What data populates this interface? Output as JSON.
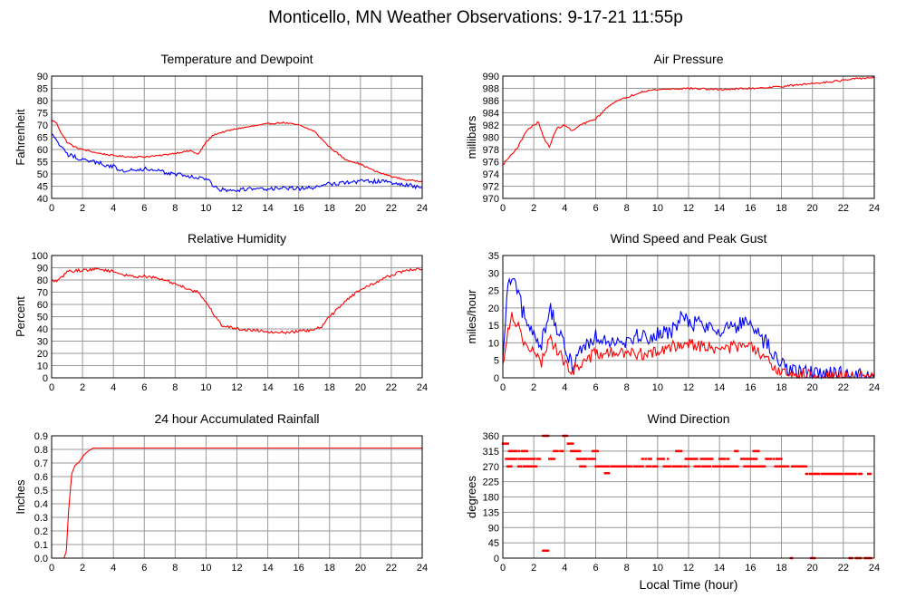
{
  "figure": {
    "title": "Monticello, MN Weather Observations: 9-17-21 11:55p",
    "xlabel": "Local Time (hour)"
  },
  "colors": {
    "red": "#ff0000",
    "blue": "#0000ff",
    "grid": "#999999",
    "frame": "#000000"
  },
  "chart_data": [
    {
      "id": "temperature",
      "type": "line",
      "title": "Temperature and Dewpoint",
      "ylabel": "Fahrenheit",
      "xlim": [
        0,
        24
      ],
      "ylim": [
        40,
        90
      ],
      "xticks": [
        0,
        2,
        4,
        6,
        8,
        10,
        12,
        14,
        16,
        18,
        20,
        22,
        24
      ],
      "yticks": [
        40,
        45,
        50,
        55,
        60,
        65,
        70,
        75,
        80,
        85,
        90
      ],
      "grid": true,
      "series": [
        {
          "color": "red",
          "noise": 0.3,
          "x": [
            0,
            0.3,
            0.6,
            1,
            1.5,
            2,
            3,
            4,
            5,
            6,
            7,
            8,
            9,
            9.5,
            10,
            10.5,
            11,
            12,
            13,
            14,
            15,
            16,
            17,
            18,
            19,
            20,
            21,
            22,
            23,
            24
          ],
          "y": [
            72,
            71,
            67,
            63,
            61,
            60,
            58.5,
            57.5,
            57,
            57,
            57.5,
            58.5,
            59.5,
            58,
            63,
            66,
            67,
            68.5,
            69.5,
            70.5,
            71,
            70,
            67.5,
            61,
            56,
            54,
            51,
            49,
            47.5,
            47
          ]
        },
        {
          "color": "blue",
          "noise": 0.9,
          "x": [
            0,
            0.3,
            0.6,
            1,
            1.5,
            2,
            3,
            4,
            4.5,
            5,
            6,
            7,
            8,
            9,
            10,
            10.5,
            11,
            12,
            13,
            14,
            15,
            16,
            17,
            18,
            19,
            20,
            21,
            22,
            23,
            24
          ],
          "y": [
            66,
            64,
            61,
            58,
            57,
            56,
            54.5,
            53,
            51,
            52,
            52,
            51,
            50,
            49,
            48,
            45,
            43.5,
            43.5,
            44,
            44,
            44,
            44,
            44.5,
            46,
            46.5,
            47,
            47,
            46.5,
            45.5,
            44.5
          ]
        }
      ]
    },
    {
      "id": "pressure",
      "type": "line",
      "title": "Air Pressure",
      "ylabel": "millibars",
      "xlim": [
        0,
        24
      ],
      "ylim": [
        970,
        990
      ],
      "xticks": [
        0,
        2,
        4,
        6,
        8,
        10,
        12,
        14,
        16,
        18,
        20,
        22,
        24
      ],
      "yticks": [
        970,
        972,
        974,
        976,
        978,
        980,
        982,
        984,
        986,
        988,
        990
      ],
      "grid": true,
      "series": [
        {
          "color": "red",
          "noise": 0.15,
          "x": [
            0,
            0.5,
            1,
            1.5,
            2,
            2.3,
            2.7,
            3,
            3.5,
            4,
            4.5,
            5,
            6,
            7,
            8,
            9,
            10,
            12,
            14,
            16,
            18,
            20,
            22,
            23,
            24
          ],
          "y": [
            975.5,
            977,
            978.5,
            981,
            982,
            982.5,
            979.5,
            978.5,
            981.5,
            982,
            981,
            982,
            983,
            985.5,
            986.5,
            987.5,
            987.8,
            988,
            987.8,
            988,
            988.3,
            988.8,
            989.3,
            989.6,
            989.8
          ]
        }
      ]
    },
    {
      "id": "humidity",
      "type": "line",
      "title": "Relative Humidity",
      "ylabel": "Percent",
      "xlim": [
        0,
        24
      ],
      "ylim": [
        0,
        100
      ],
      "xticks": [
        0,
        2,
        4,
        6,
        8,
        10,
        12,
        14,
        16,
        18,
        20,
        22,
        24
      ],
      "yticks": [
        0,
        10,
        20,
        30,
        40,
        50,
        60,
        70,
        80,
        90,
        100
      ],
      "grid": true,
      "series": [
        {
          "color": "red",
          "noise": 1.2,
          "x": [
            0,
            0.5,
            1,
            2,
            3,
            4,
            5,
            6,
            7,
            8,
            9,
            9.5,
            10,
            10.5,
            11,
            12,
            13,
            14,
            15,
            16,
            17,
            17.5,
            18,
            18.5,
            19,
            20,
            21,
            22,
            23,
            24
          ],
          "y": [
            79,
            80,
            87,
            88,
            89,
            87,
            83,
            83,
            81,
            77,
            72,
            70,
            62,
            52,
            43,
            40,
            39,
            38,
            37,
            38,
            39,
            42,
            50,
            56,
            63,
            72,
            78,
            84,
            88,
            89
          ]
        }
      ]
    },
    {
      "id": "wind",
      "type": "line",
      "title": "Wind Speed and Peak Gust",
      "ylabel": "miles/hour",
      "xlim": [
        0,
        24
      ],
      "ylim": [
        0,
        35
      ],
      "xticks": [
        0,
        2,
        4,
        6,
        8,
        10,
        12,
        14,
        16,
        18,
        20,
        22,
        24
      ],
      "yticks": [
        0,
        5,
        10,
        15,
        20,
        25,
        30,
        35
      ],
      "grid": true,
      "series": [
        {
          "color": "blue",
          "noise": 2.5,
          "x": [
            0,
            0.3,
            0.6,
            1,
            1.5,
            2,
            2.5,
            3,
            3.5,
            4,
            4.5,
            5,
            6,
            7,
            8,
            9,
            10,
            11,
            11.5,
            12,
            13,
            14,
            15,
            16,
            16.5,
            17,
            17.5,
            18,
            19,
            20,
            21,
            22,
            23,
            23.5,
            24
          ],
          "y": [
            4,
            25,
            29,
            23,
            16,
            12,
            10,
            20,
            14,
            8,
            4,
            8,
            12,
            11,
            11,
            12,
            12,
            14,
            17,
            16,
            15,
            14,
            15,
            15,
            12,
            10,
            6,
            4,
            2,
            1,
            1,
            1,
            0.5,
            0,
            0.5
          ]
        },
        {
          "color": "red",
          "noise": 1.8,
          "x": [
            0,
            0.3,
            0.6,
            1,
            1.5,
            2,
            2.5,
            3,
            3.5,
            4,
            4.5,
            5,
            6,
            7,
            8,
            9,
            10,
            11,
            11.5,
            12,
            13,
            14,
            15,
            16,
            16.5,
            17,
            17.5,
            18,
            19,
            20,
            21,
            22,
            23,
            24
          ],
          "y": [
            3,
            14,
            18,
            15,
            9,
            7,
            4,
            12,
            8,
            4,
            2,
            4,
            7,
            7,
            7,
            7,
            7,
            9,
            10,
            10,
            9,
            8,
            9,
            9,
            7,
            5,
            3,
            2,
            1,
            0.5,
            0.5,
            0.5,
            0,
            0
          ]
        }
      ]
    },
    {
      "id": "rainfall",
      "type": "line",
      "title": "24 hour Accumulated Rainfall",
      "ylabel": "Inches",
      "xlim": [
        0,
        24
      ],
      "ylim": [
        0,
        0.9
      ],
      "xticks": [
        0,
        2,
        4,
        6,
        8,
        10,
        12,
        14,
        16,
        18,
        20,
        22,
        24
      ],
      "yticks": [
        0.0,
        0.1,
        0.2,
        0.3,
        0.4,
        0.5,
        0.6,
        0.7,
        0.8,
        0.9
      ],
      "ytick_labels": [
        "0.0",
        "0.1",
        "0.2",
        "0.3",
        "0.4",
        "0.5",
        "0.6",
        "0.7",
        "0.8",
        "0.9"
      ],
      "grid": true,
      "series": [
        {
          "color": "red",
          "noise": 0,
          "x": [
            0,
            0.8,
            0.95,
            1.1,
            1.3,
            1.5,
            1.8,
            2.1,
            2.4,
            2.7,
            3,
            24
          ],
          "y": [
            0,
            0,
            0.05,
            0.35,
            0.62,
            0.68,
            0.71,
            0.76,
            0.79,
            0.81,
            0.81,
            0.81
          ]
        }
      ]
    },
    {
      "id": "direction",
      "type": "scatter",
      "title": "Wind Direction",
      "ylabel": "degrees",
      "xlim": [
        0,
        24
      ],
      "ylim": [
        0,
        360
      ],
      "xticks": [
        0,
        2,
        4,
        6,
        8,
        10,
        12,
        14,
        16,
        18,
        20,
        22,
        24
      ],
      "yticks": [
        0,
        45,
        90,
        135,
        180,
        225,
        270,
        315,
        360
      ],
      "grid": true,
      "series": [
        {
          "color": "red",
          "segments": [
            {
              "x0": 0.0,
              "x1": 0.4,
              "y": 337
            },
            {
              "x0": 0.2,
              "x1": 1.4,
              "y": 292
            },
            {
              "x0": 0.4,
              "x1": 1.6,
              "y": 315
            },
            {
              "x0": 0.3,
              "x1": 0.6,
              "y": 270
            },
            {
              "x0": 1.0,
              "x1": 2.2,
              "y": 270
            },
            {
              "x0": 1.4,
              "x1": 2.4,
              "y": 292
            },
            {
              "x0": 2.6,
              "x1": 3.0,
              "y": 360
            },
            {
              "x0": 2.6,
              "x1": 3.0,
              "y": 22
            },
            {
              "x0": 3.0,
              "x1": 3.4,
              "y": 292
            },
            {
              "x0": 3.3,
              "x1": 3.9,
              "y": 315
            },
            {
              "x0": 3.9,
              "x1": 4.2,
              "y": 360
            },
            {
              "x0": 4.2,
              "x1": 4.6,
              "y": 337
            },
            {
              "x0": 4.4,
              "x1": 5.0,
              "y": 315
            },
            {
              "x0": 4.8,
              "x1": 5.4,
              "y": 292
            },
            {
              "x0": 5.2,
              "x1": 6.0,
              "y": 292
            },
            {
              "x0": 5.0,
              "x1": 5.4,
              "y": 270
            },
            {
              "x0": 5.8,
              "x1": 6.2,
              "y": 315
            },
            {
              "x0": 6.0,
              "x1": 8.8,
              "y": 270
            },
            {
              "x0": 6.6,
              "x1": 6.9,
              "y": 250
            },
            {
              "x0": 8.8,
              "x1": 10.0,
              "y": 270
            },
            {
              "x0": 9.0,
              "x1": 9.6,
              "y": 292
            },
            {
              "x0": 10.0,
              "x1": 10.8,
              "y": 292
            },
            {
              "x0": 10.4,
              "x1": 12.0,
              "y": 270
            },
            {
              "x0": 11.2,
              "x1": 11.6,
              "y": 315
            },
            {
              "x0": 11.8,
              "x1": 12.6,
              "y": 292
            },
            {
              "x0": 12.4,
              "x1": 13.4,
              "y": 270
            },
            {
              "x0": 12.8,
              "x1": 13.6,
              "y": 292
            },
            {
              "x0": 13.6,
              "x1": 15.2,
              "y": 270
            },
            {
              "x0": 14.0,
              "x1": 14.6,
              "y": 292
            },
            {
              "x0": 15.0,
              "x1": 15.2,
              "y": 315
            },
            {
              "x0": 15.4,
              "x1": 16.4,
              "y": 292
            },
            {
              "x0": 15.6,
              "x1": 17.0,
              "y": 270
            },
            {
              "x0": 16.2,
              "x1": 16.6,
              "y": 315
            },
            {
              "x0": 17.0,
              "x1": 18.0,
              "y": 292
            },
            {
              "x0": 17.6,
              "x1": 19.6,
              "y": 270
            },
            {
              "x0": 18.6,
              "x1": 18.7,
              "y": 0
            },
            {
              "x0": 19.6,
              "x1": 23.2,
              "y": 248
            },
            {
              "x0": 19.9,
              "x1": 20.2,
              "y": 0
            },
            {
              "x0": 22.4,
              "x1": 22.6,
              "y": 0
            },
            {
              "x0": 22.8,
              "x1": 23.8,
              "y": 0
            },
            {
              "x0": 23.6,
              "x1": 23.8,
              "y": 248
            }
          ]
        }
      ]
    }
  ]
}
